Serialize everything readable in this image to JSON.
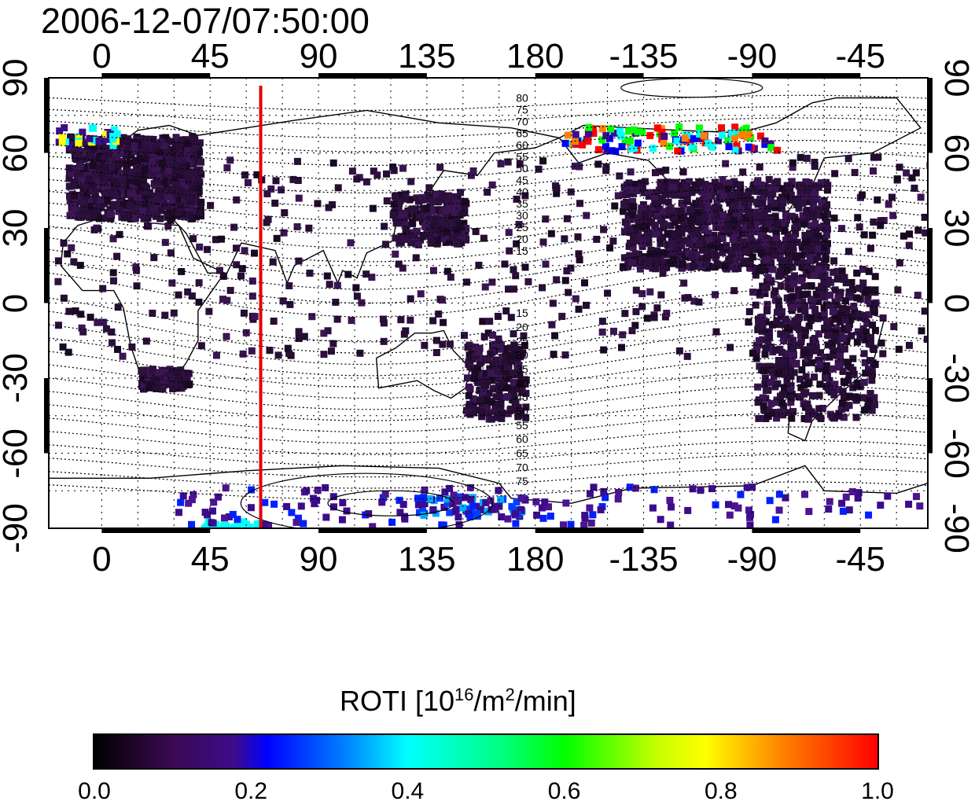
{
  "title": "2006-12-07/07:50:00",
  "map": {
    "lon_range": [
      -22,
      343
    ],
    "lat_range": [
      -90,
      90
    ],
    "top_ticks": [
      "0",
      "45",
      "90",
      "135",
      "180",
      "-135",
      "-90",
      "-45"
    ],
    "bottom_ticks": [
      "0",
      "45",
      "90",
      "135",
      "180",
      "-135",
      "-90",
      "-45"
    ],
    "left_ticks": [
      "90",
      "60",
      "30",
      "0",
      "-30",
      "-60",
      "-90"
    ],
    "right_ticks": [
      "90",
      "60",
      "30",
      "0",
      "-30",
      "-60",
      "-90"
    ],
    "north_contour_labels": [
      "80",
      "75",
      "70",
      "65",
      "60",
      "55",
      "50",
      "45",
      "40",
      "35",
      "30",
      "25",
      "20",
      "15"
    ],
    "south_contour_labels": [
      "15",
      "20",
      "25",
      "30",
      "35",
      "40",
      "45",
      "50",
      "55",
      "60",
      "65",
      "70",
      "75"
    ],
    "terminator_line": {
      "lon": 66,
      "color": "#e00000"
    },
    "grid": true
  },
  "colorbar": {
    "label_main": "ROTI  [10",
    "label_exp1": "16",
    "label_mid": "/m",
    "label_exp2": "2",
    "label_end": "/min]",
    "ticks": [
      "0.0",
      "0.2",
      "0.4",
      "0.6",
      "0.8",
      "1.0"
    ],
    "range": [
      0.0,
      1.0
    ]
  }
}
